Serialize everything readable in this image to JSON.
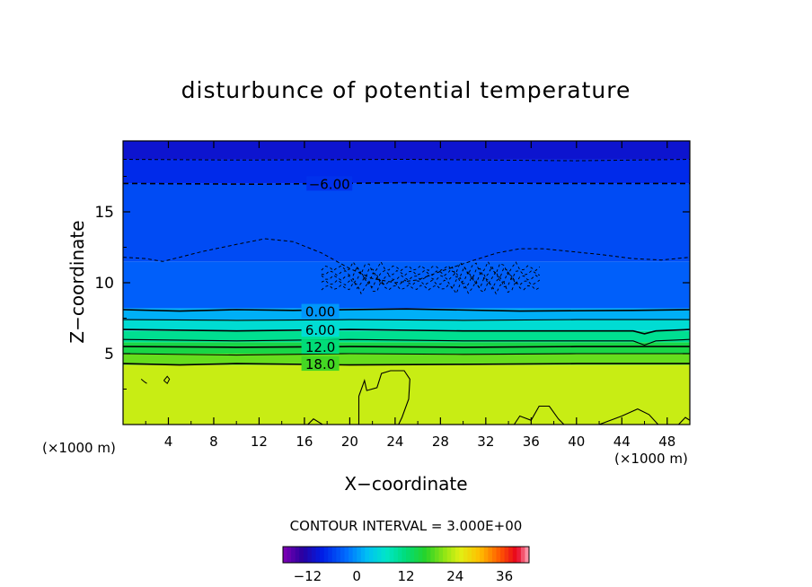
{
  "chart_data": {
    "type": "heatmap",
    "title": "disturbunce of potential temperature",
    "xlabel": "X−coordinate",
    "ylabel": "Z−coordinate",
    "x_unit_label": "(×1000 m)",
    "xlim": [
      0,
      50
    ],
    "ylim": [
      0,
      20
    ],
    "x_ticks": [
      4,
      8,
      12,
      16,
      20,
      24,
      28,
      32,
      36,
      40,
      44,
      48
    ],
    "x_tick_labels": [
      "4",
      "8",
      "12",
      "16",
      "20",
      "24",
      "28",
      "32",
      "36",
      "40",
      "44",
      "48"
    ],
    "y_ticks": [
      5,
      10,
      15
    ],
    "y_tick_labels": [
      "5",
      "10",
      "15"
    ],
    "contour_interval_text": "CONTOUR INTERVAL = 3.000E+00",
    "contour_interval": 3.0,
    "colorbar": {
      "range": [
        -18,
        42
      ],
      "ticks": [
        -12,
        0,
        12,
        24,
        36
      ],
      "tick_labels": [
        "−12",
        "0",
        "12",
        "24",
        "36"
      ]
    },
    "contour_labels": [
      {
        "text": "−6.00",
        "value": -6,
        "x": 18.2,
        "z": 17.0
      },
      {
        "text": "0.00",
        "value": 0,
        "x": 17.4,
        "z": 8.0
      },
      {
        "text": "6.00",
        "value": 6,
        "x": 17.4,
        "z": 6.7
      },
      {
        "text": "12.0",
        "value": 12,
        "x": 17.4,
        "z": 5.5
      },
      {
        "text": "18.0",
        "value": 18,
        "x": 17.4,
        "z": 4.3
      }
    ],
    "field_bands": [
      {
        "z_from": 0,
        "z_to": 4.2,
        "value": 24
      },
      {
        "z_from": 4.2,
        "z_to": 5.0,
        "value": 19.5
      },
      {
        "z_from": 5.0,
        "z_to": 5.8,
        "value": 15
      },
      {
        "z_from": 5.8,
        "z_to": 6.6,
        "value": 10.5
      },
      {
        "z_from": 6.6,
        "z_to": 7.4,
        "value": 6
      },
      {
        "z_from": 7.4,
        "z_to": 8.2,
        "value": 1.5
      },
      {
        "z_from": 8.2,
        "z_to": 11.5,
        "value": -3.5
      },
      {
        "z_from": 11.5,
        "z_to": 17.0,
        "value": -5
      },
      {
        "z_from": 17.0,
        "z_to": 18.7,
        "value": -7.5
      },
      {
        "z_from": 18.7,
        "z_to": 20.0,
        "value": -10
      }
    ],
    "contours": [
      {
        "value": -9,
        "dashed": true,
        "points": [
          [
            0,
            18.7
          ],
          [
            10,
            18.65
          ],
          [
            25,
            18.7
          ],
          [
            40,
            18.6
          ],
          [
            50,
            18.7
          ]
        ]
      },
      {
        "value": -6,
        "dashed": true,
        "points": [
          [
            0,
            17.0
          ],
          [
            12,
            16.95
          ],
          [
            25,
            17.05
          ],
          [
            38,
            17.0
          ],
          [
            50,
            17.0
          ]
        ]
      },
      {
        "value": -3,
        "dashed": true,
        "points": [
          [
            0,
            11.8
          ],
          [
            2,
            11.7
          ],
          [
            3.5,
            11.5
          ],
          [
            5,
            11.8
          ],
          [
            7,
            12.2
          ],
          [
            10,
            12.7
          ],
          [
            12.5,
            13.1
          ],
          [
            15,
            12.9
          ],
          [
            17.5,
            12.1
          ],
          [
            20,
            11.0
          ],
          [
            22,
            10.3
          ],
          [
            24,
            10.0
          ],
          [
            26,
            10.2
          ],
          [
            28,
            10.8
          ],
          [
            31,
            11.6
          ],
          [
            33,
            12.1
          ],
          [
            35,
            12.4
          ],
          [
            37,
            12.4
          ],
          [
            39.5,
            12.2
          ],
          [
            42,
            12.0
          ],
          [
            45,
            11.7
          ],
          [
            47.5,
            11.6
          ],
          [
            50,
            11.8
          ]
        ]
      },
      {
        "value": 0,
        "dashed": false,
        "points": [
          [
            0,
            8.1
          ],
          [
            5,
            8.0
          ],
          [
            10,
            8.1
          ],
          [
            15,
            8.05
          ],
          [
            25,
            8.15
          ],
          [
            35,
            8.0
          ],
          [
            45,
            8.05
          ],
          [
            50,
            8.1
          ]
        ]
      },
      {
        "value": 3,
        "dashed": false,
        "points": [
          [
            0,
            7.4
          ],
          [
            10,
            7.35
          ],
          [
            20,
            7.4
          ],
          [
            30,
            7.35
          ],
          [
            40,
            7.4
          ],
          [
            50,
            7.4
          ]
        ]
      },
      {
        "value": 6,
        "dashed": false,
        "points": [
          [
            0,
            6.7
          ],
          [
            10,
            6.6
          ],
          [
            20,
            6.7
          ],
          [
            30,
            6.6
          ],
          [
            45,
            6.6
          ],
          [
            46,
            6.4
          ],
          [
            47,
            6.6
          ],
          [
            50,
            6.7
          ]
        ]
      },
      {
        "value": 9,
        "dashed": false,
        "points": [
          [
            0,
            6.0
          ],
          [
            10,
            5.9
          ],
          [
            20,
            6.0
          ],
          [
            30,
            5.9
          ],
          [
            45,
            5.9
          ],
          [
            46,
            5.6
          ],
          [
            47,
            5.9
          ],
          [
            50,
            6.0
          ]
        ]
      },
      {
        "value": 12,
        "dashed": false,
        "points": [
          [
            0,
            5.5
          ],
          [
            10,
            5.45
          ],
          [
            20,
            5.5
          ],
          [
            30,
            5.45
          ],
          [
            40,
            5.5
          ],
          [
            50,
            5.5
          ]
        ]
      },
      {
        "value": 15,
        "dashed": false,
        "points": [
          [
            0,
            5.0
          ],
          [
            10,
            4.9
          ],
          [
            20,
            5.0
          ],
          [
            30,
            4.95
          ],
          [
            40,
            5.0
          ],
          [
            50,
            5.0
          ]
        ]
      },
      {
        "value": 18,
        "dashed": false,
        "points": [
          [
            0,
            4.3
          ],
          [
            5,
            4.2
          ],
          [
            10,
            4.3
          ],
          [
            20,
            4.2
          ],
          [
            30,
            4.25
          ],
          [
            40,
            4.3
          ],
          [
            50,
            4.3
          ]
        ]
      },
      {
        "value": 21,
        "dashed": false,
        "points": [
          [
            20.8,
            0
          ],
          [
            20.8,
            2
          ],
          [
            21.3,
            3.1
          ],
          [
            21.5,
            2.4
          ],
          [
            22.4,
            2.6
          ],
          [
            22.8,
            3.6
          ],
          [
            23.6,
            3.8
          ],
          [
            24.8,
            3.8
          ],
          [
            25.3,
            3.2
          ],
          [
            25.2,
            1.8
          ],
          [
            24.6,
            0.5
          ],
          [
            24.3,
            0
          ]
        ]
      },
      {
        "value": 21,
        "dashed": false,
        "points": [
          [
            16.3,
            0
          ],
          [
            16.8,
            0.4
          ],
          [
            17.6,
            0
          ]
        ]
      },
      {
        "value": 21,
        "dashed": false,
        "points": [
          [
            34.5,
            0
          ],
          [
            35,
            0.6
          ],
          [
            36,
            0.3
          ],
          [
            36.7,
            1.3
          ],
          [
            37.6,
            1.3
          ],
          [
            38.4,
            0.4
          ],
          [
            38.9,
            0
          ]
        ]
      },
      {
        "value": 21,
        "dashed": false,
        "points": [
          [
            42,
            0
          ],
          [
            44,
            0.6
          ],
          [
            45.4,
            1.1
          ],
          [
            46.4,
            0.7
          ],
          [
            47.2,
            0
          ]
        ]
      },
      {
        "value": 21,
        "dashed": false,
        "points": [
          [
            49,
            0
          ],
          [
            49.6,
            0.5
          ],
          [
            50,
            0.3
          ]
        ]
      }
    ],
    "small_features": [
      {
        "kind": "closed",
        "value": 21,
        "points": [
          [
            3.6,
            3.1
          ],
          [
            3.9,
            3.4
          ],
          [
            4.1,
            3.2
          ],
          [
            3.9,
            2.9
          ],
          [
            3.6,
            3.1
          ]
        ]
      },
      {
        "kind": "open",
        "value": 21,
        "points": [
          [
            1.6,
            3.2
          ],
          [
            1.9,
            3.0
          ],
          [
            2.1,
            2.9
          ]
        ]
      }
    ],
    "turbulent_region": {
      "x_range": [
        17.5,
        37
      ],
      "z_range": [
        9.5,
        11.2
      ],
      "dashed": true
    }
  }
}
